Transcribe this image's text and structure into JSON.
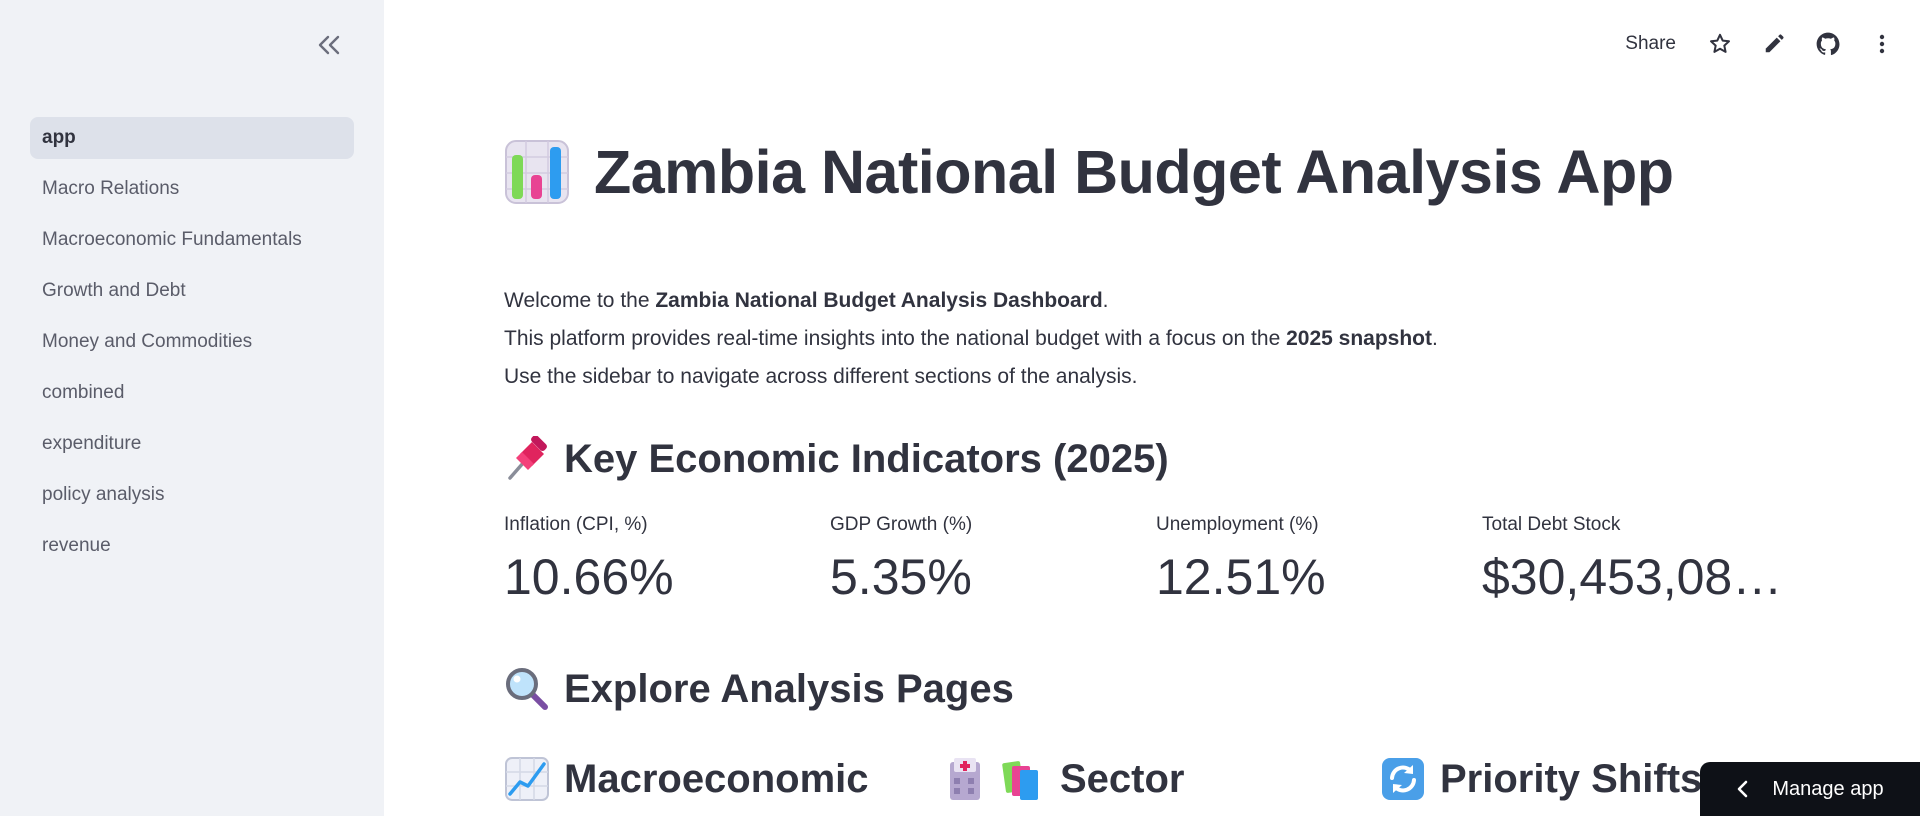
{
  "sidebar": {
    "collapse_icon": "chevrons-left-icon",
    "items": [
      {
        "label": "app",
        "active": true
      },
      {
        "label": "Macro Relations"
      },
      {
        "label": "Macroeconomic Fundamentals"
      },
      {
        "label": "Growth and Debt"
      },
      {
        "label": "Money and Commodities"
      },
      {
        "label": "combined"
      },
      {
        "label": "expenditure"
      },
      {
        "label": "policy analysis"
      },
      {
        "label": "revenue"
      }
    ]
  },
  "toolbar": {
    "share_label": "Share",
    "icons": [
      "star-icon",
      "pencil-icon",
      "github-icon",
      "more-vertical-icon"
    ]
  },
  "main": {
    "title_emoji": "bar-chart-emoji",
    "title": "Zambia National Budget Analysis App",
    "intro": {
      "line1_pre": "Welcome to the ",
      "line1_bold": "Zambia National Budget Analysis Dashboard",
      "line1_post": ".",
      "line2_pre": "This platform provides real-time insights into the national budget with a focus on the ",
      "line2_bold": "2025 snapshot",
      "line2_post": ".",
      "line3": "Use the sidebar to navigate across different sections of the analysis."
    },
    "indicators_heading": "Key Economic Indicators (2025)",
    "indicators_emoji": "pushpin-emoji",
    "metrics": [
      {
        "label": "Inflation (CPI, %)",
        "value": "10.66%"
      },
      {
        "label": "GDP Growth (%)",
        "value": "5.35%"
      },
      {
        "label": "Unemployment (%)",
        "value": "12.51%"
      },
      {
        "label": "Total Debt Stock",
        "value": "$30,453,08…"
      }
    ],
    "explore_heading": "Explore Analysis Pages",
    "explore_emoji": "magnifying-glass-emoji",
    "cards": [
      {
        "emoji": "chart-increasing-emoji",
        "title": "Macroeconomic"
      },
      {
        "emoji": "hospital-books-emoji",
        "title": "Sector"
      },
      {
        "emoji": "arrows-cycle-emoji",
        "title": "Priority Shifts"
      }
    ]
  },
  "manage_app_label": "Manage app"
}
